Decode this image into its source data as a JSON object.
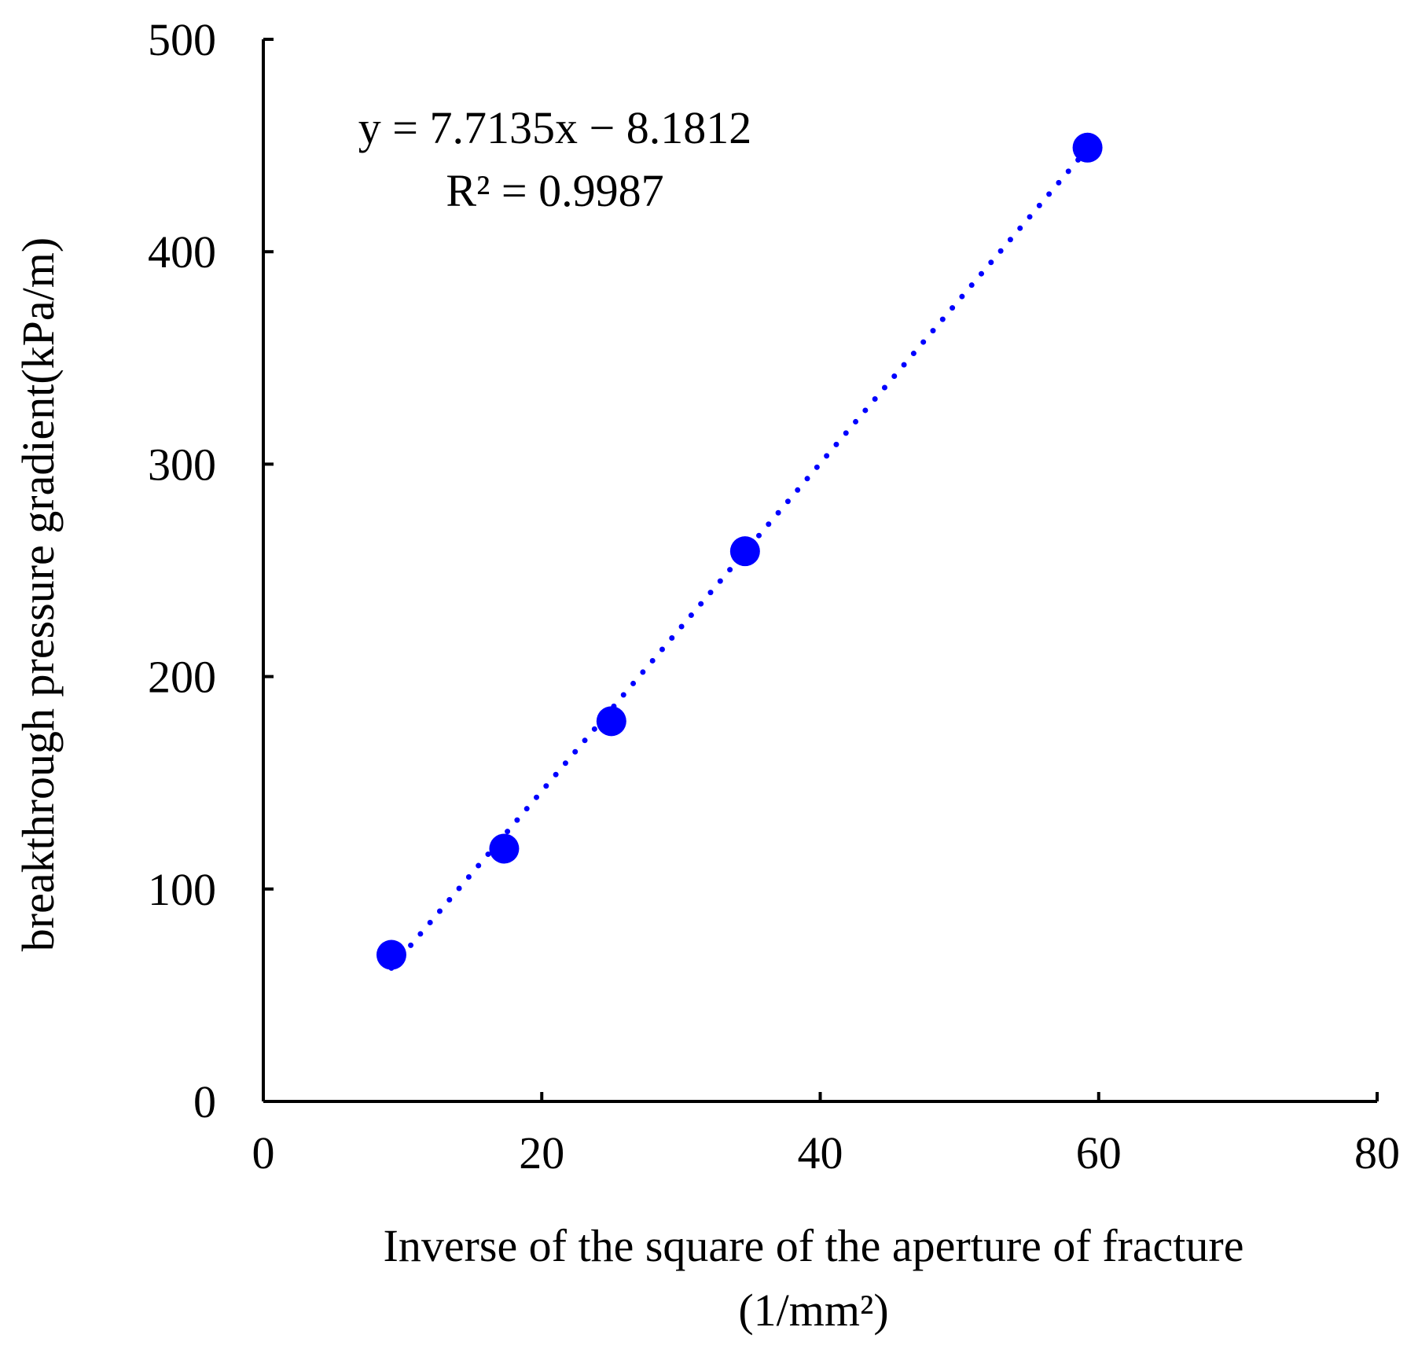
{
  "chart_data": {
    "type": "scatter",
    "xlabel": "Inverse of the square of the aperture of fracture",
    "xlabel_unit": "(1/mm²)",
    "ylabel": "breakthrough pressure gradient(kPa/m)",
    "xlim": [
      0,
      80
    ],
    "ylim": [
      0,
      500
    ],
    "x_ticks": [
      0,
      20,
      40,
      60,
      80
    ],
    "y_ticks": [
      0,
      100,
      200,
      300,
      400,
      500
    ],
    "grid": false,
    "legend": "none",
    "series": [
      {
        "color": "#0000FF",
        "points": [
          {
            "x": 9.2,
            "y": 69
          },
          {
            "x": 17.3,
            "y": 119
          },
          {
            "x": 25.0,
            "y": 179
          },
          {
            "x": 34.6,
            "y": 259
          },
          {
            "x": 59.2,
            "y": 449
          }
        ]
      }
    ],
    "trendline": {
      "type": "linear",
      "slope": 7.7135,
      "intercept": -8.1812,
      "x_range": [
        9.2,
        59.2
      ],
      "style": "dotted",
      "color": "#0000FF"
    },
    "annotations": {
      "equation": "y = 7.7135x − 8.1812",
      "r_squared": "R² = 0.9987"
    }
  }
}
